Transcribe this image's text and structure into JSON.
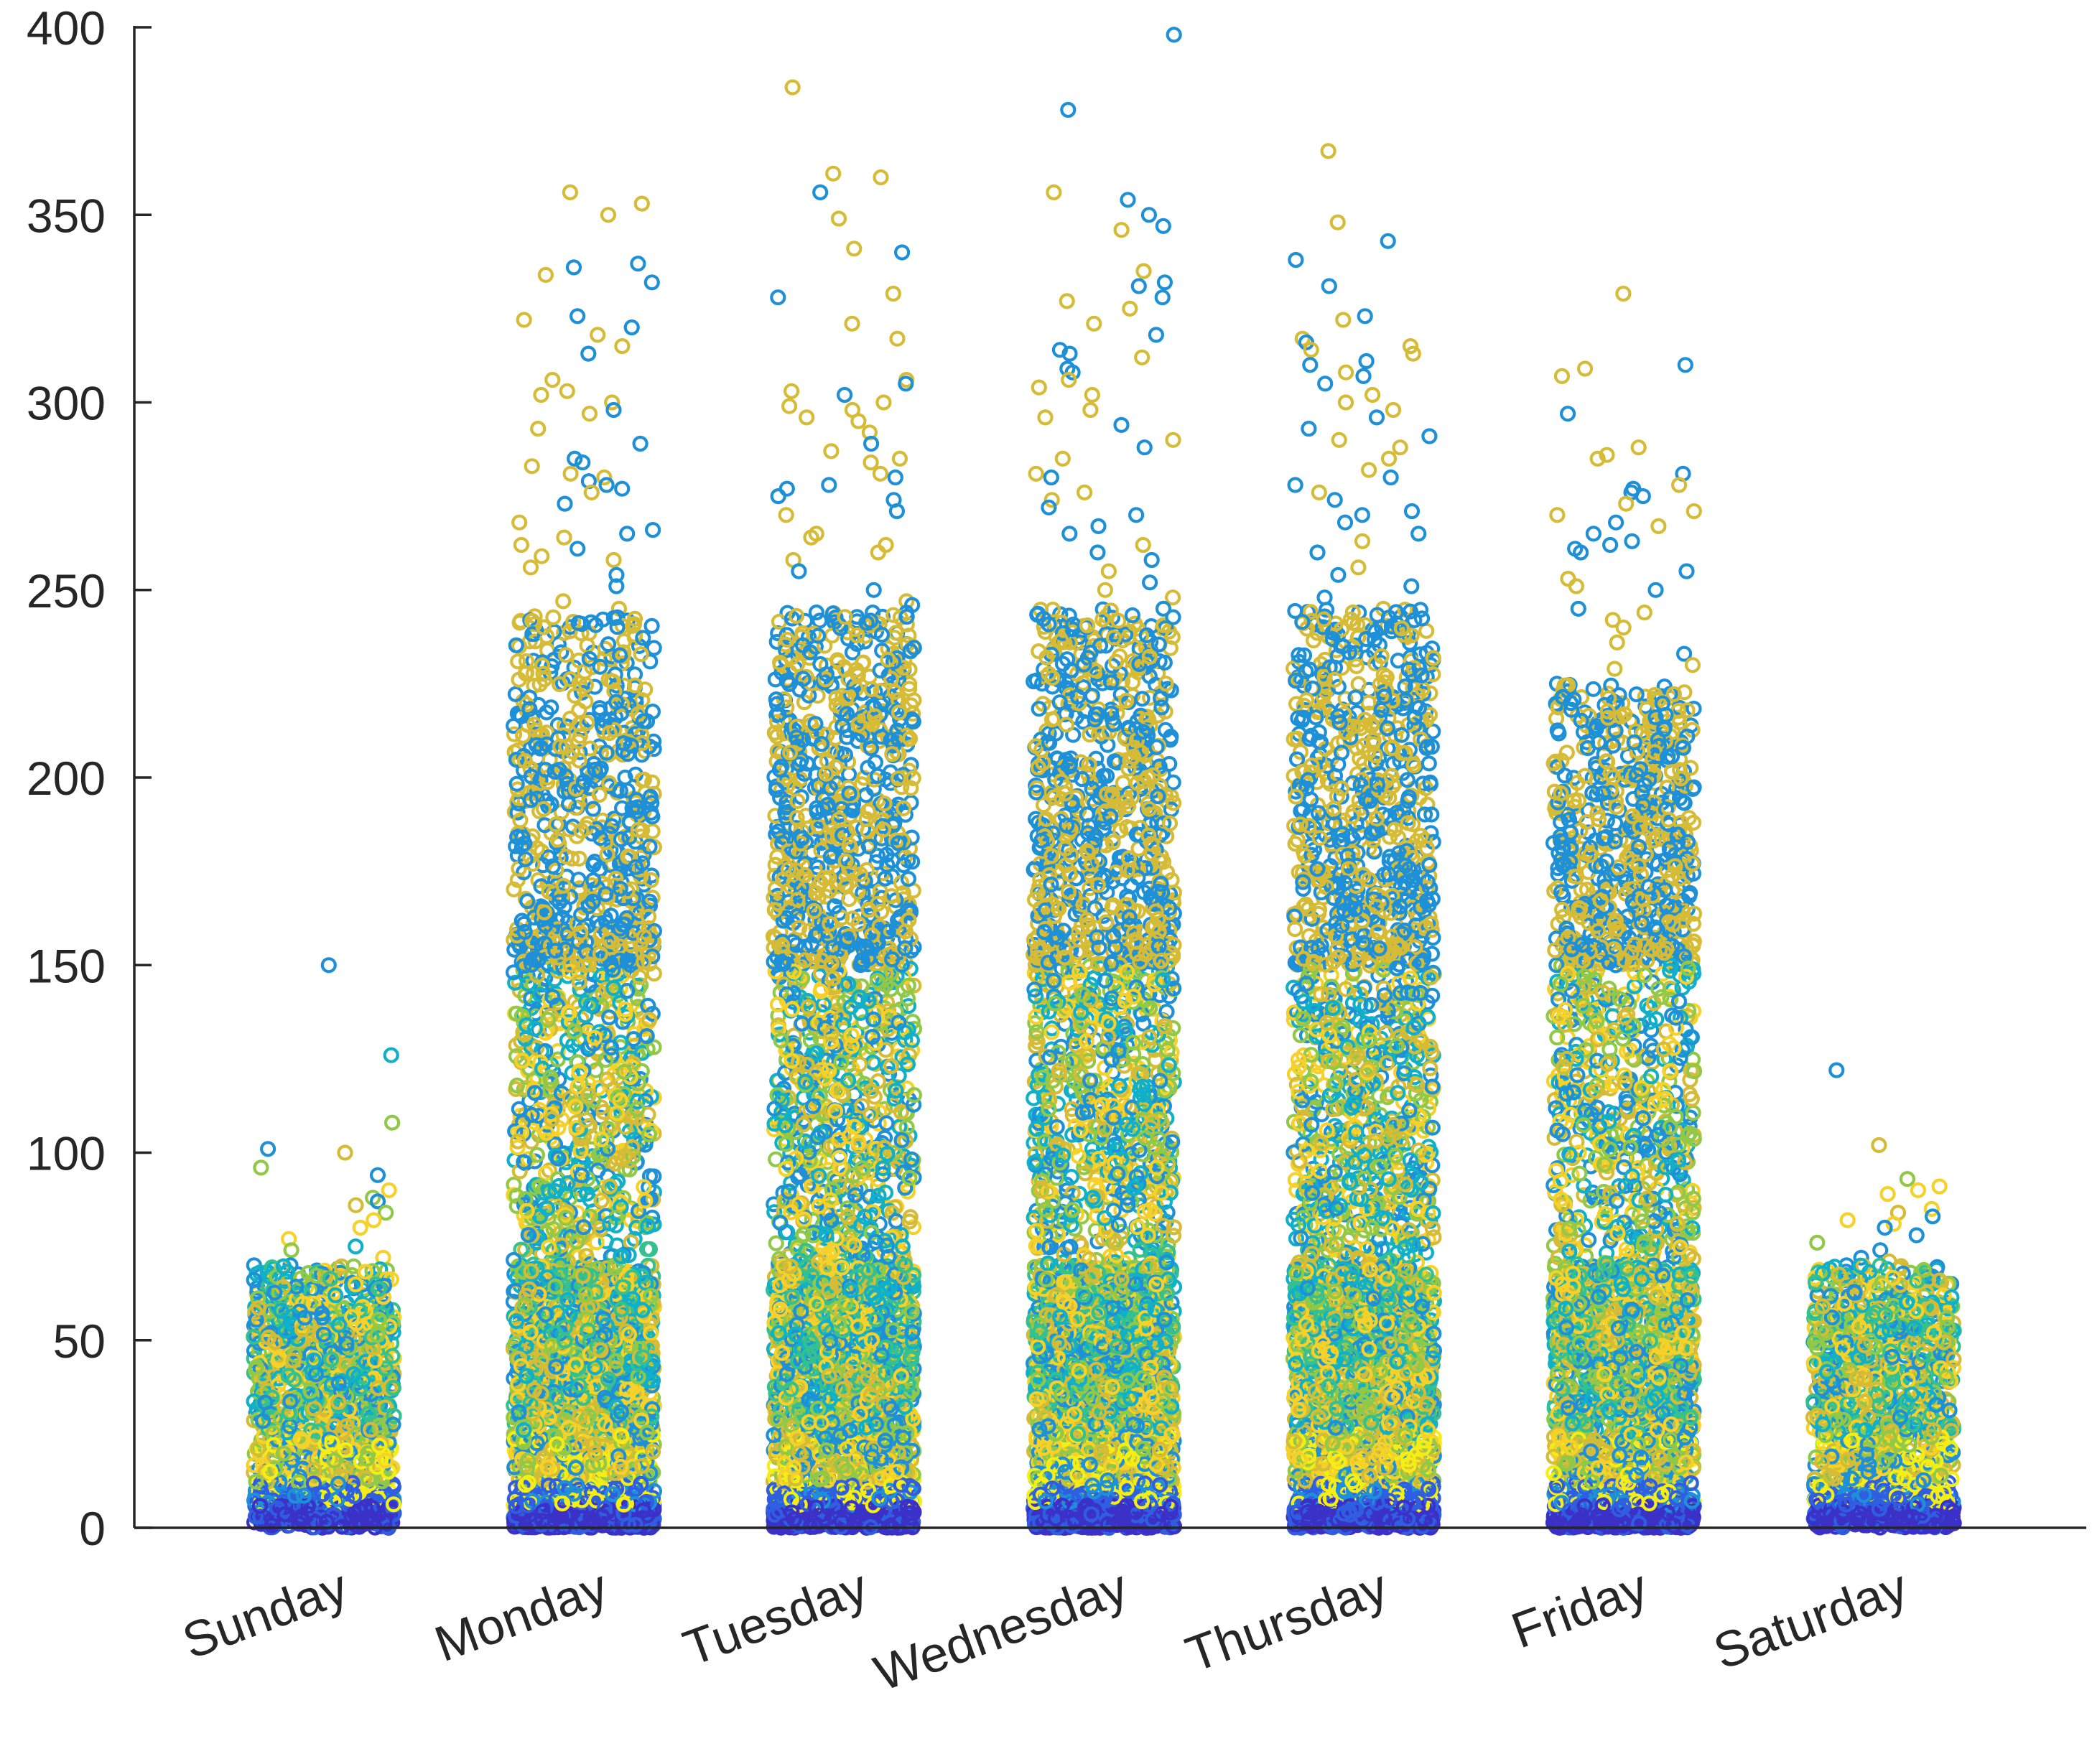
{
  "chart_data": {
    "type": "scatter",
    "title": "",
    "xlabel": "",
    "ylabel": "",
    "categories": [
      "Sunday",
      "Monday",
      "Tuesday",
      "Wednesday",
      "Thursday",
      "Friday",
      "Saturday"
    ],
    "ylim": [
      0,
      400
    ],
    "yticks": [
      0,
      50,
      100,
      150,
      200,
      250,
      300,
      350,
      400
    ],
    "grid": false,
    "legend": "none",
    "colormap": [
      "#3b30c8",
      "#2f5fe0",
      "#1e90d8",
      "#10b0c8",
      "#35c090",
      "#90c848",
      "#d6bc36",
      "#f6d12a",
      "#f4ee16"
    ],
    "series": [
      {
        "category": "Sunday",
        "approx_point_count": 1500,
        "peak_values": [
          150,
          126,
          108,
          101,
          100,
          96,
          94,
          90,
          88,
          87,
          86,
          84,
          82,
          80,
          77,
          75,
          74,
          72,
          70,
          68,
          66,
          65,
          64,
          63,
          62
        ]
      },
      {
        "category": "Monday",
        "approx_point_count": 3400,
        "peak_values": [
          356,
          353,
          350,
          337,
          336,
          334,
          332,
          323,
          322,
          320,
          318,
          315,
          313,
          306,
          303,
          302,
          300,
          298,
          297,
          293,
          289,
          285,
          284,
          283,
          281,
          280,
          279,
          278,
          277,
          276,
          273,
          268,
          266,
          265,
          264,
          262,
          261,
          259,
          258,
          256,
          254,
          251,
          247,
          245,
          243
        ]
      },
      {
        "category": "Tuesday",
        "approx_point_count": 3600,
        "peak_values": [
          384,
          361,
          360,
          356,
          349,
          341,
          340,
          329,
          328,
          321,
          317,
          306,
          305,
          303,
          302,
          300,
          299,
          298,
          296,
          295,
          292,
          289,
          287,
          285,
          284,
          281,
          280,
          278,
          277,
          275,
          274,
          271,
          270,
          265,
          264,
          262,
          260,
          258,
          255,
          250,
          247,
          246,
          244
        ]
      },
      {
        "category": "Wednesday",
        "approx_point_count": 3800,
        "peak_values": [
          398,
          378,
          356,
          354,
          350,
          347,
          346,
          335,
          332,
          331,
          328,
          327,
          325,
          321,
          318,
          314,
          313,
          312,
          309,
          308,
          306,
          304,
          302,
          298,
          296,
          294,
          290,
          288,
          285,
          281,
          280,
          276,
          274,
          272,
          270,
          267,
          265,
          262,
          260,
          258,
          255,
          252,
          250,
          248,
          245
        ]
      },
      {
        "category": "Thursday",
        "approx_point_count": 3700,
        "peak_values": [
          367,
          348,
          343,
          338,
          331,
          323,
          322,
          317,
          316,
          315,
          314,
          313,
          311,
          310,
          308,
          307,
          305,
          302,
          300,
          298,
          296,
          293,
          291,
          290,
          288,
          285,
          282,
          280,
          278,
          276,
          274,
          271,
          270,
          268,
          265,
          263,
          260,
          256,
          254,
          251,
          248,
          245
        ]
      },
      {
        "category": "Friday",
        "approx_point_count": 3300,
        "peak_values": [
          329,
          310,
          309,
          307,
          297,
          288,
          286,
          285,
          281,
          278,
          277,
          276,
          275,
          273,
          271,
          270,
          268,
          267,
          265,
          263,
          262,
          261,
          260,
          255,
          253,
          251,
          250,
          245,
          244,
          242,
          240,
          236,
          233,
          230,
          229,
          225
        ]
      },
      {
        "category": "Saturday",
        "approx_point_count": 1500,
        "peak_values": [
          122,
          102,
          93,
          91,
          90,
          89,
          85,
          84,
          83,
          82,
          81,
          80,
          78,
          76,
          74,
          72,
          71,
          70,
          69,
          68,
          67,
          66,
          65
        ]
      }
    ]
  }
}
